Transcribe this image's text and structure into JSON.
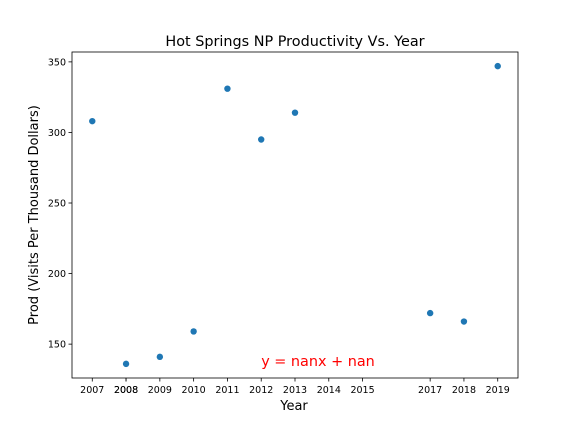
{
  "chart_data": {
    "type": "scatter",
    "title": "Hot Springs NP Productivity Vs. Year",
    "xlabel": "Year",
    "ylabel": "Prod (Visits Per Thousand Dollars)",
    "xlim": [
      2006.4,
      2019.6
    ],
    "ylim": [
      126,
      357
    ],
    "xticks": [
      "2007",
      "2008",
      "2008",
      "2009",
      "2010",
      "2011",
      "2012",
      "2013",
      "2014",
      "2015",
      "2017",
      "2018",
      "2019"
    ],
    "xtick_values": [
      2007,
      2008,
      2008,
      2009,
      2010,
      2011,
      2012,
      2013,
      2014,
      2015,
      2017,
      2018,
      2019
    ],
    "yticks": [
      150,
      200,
      250,
      300,
      350
    ],
    "grid": false,
    "point_color": "#1f77b4",
    "series": [
      {
        "x": [
          2007,
          2008,
          2009,
          2010,
          2011,
          2012,
          2013,
          2017,
          2018,
          2019
        ],
        "y": [
          308,
          136,
          141,
          159,
          331,
          295,
          314,
          172,
          166,
          347
        ]
      }
    ],
    "annotation": {
      "text": "y = nanx + nan",
      "color": "#ff0000",
      "x": 2012,
      "y": 138
    }
  }
}
